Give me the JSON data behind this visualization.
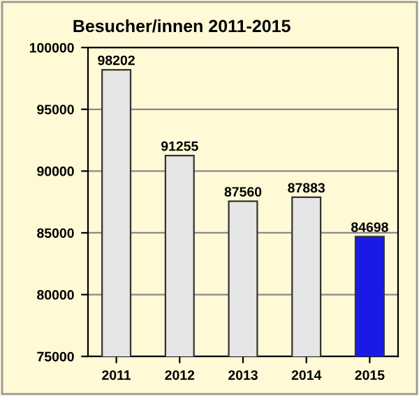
{
  "chart_data": {
    "type": "bar",
    "title": "Besucher/innen 2011-2015",
    "categories": [
      "2011",
      "2012",
      "2013",
      "2014",
      "2015"
    ],
    "values": [
      98202,
      91255,
      87560,
      87883,
      84698
    ],
    "colors": [
      "#e6e6e6",
      "#e6e6e6",
      "#e6e6e6",
      "#e6e6e6",
      "#1a1ae6"
    ],
    "ylim": [
      75000,
      100000
    ],
    "yticks": [
      75000,
      80000,
      85000,
      90000,
      95000,
      100000
    ],
    "grid": "y",
    "data_labels": true
  }
}
